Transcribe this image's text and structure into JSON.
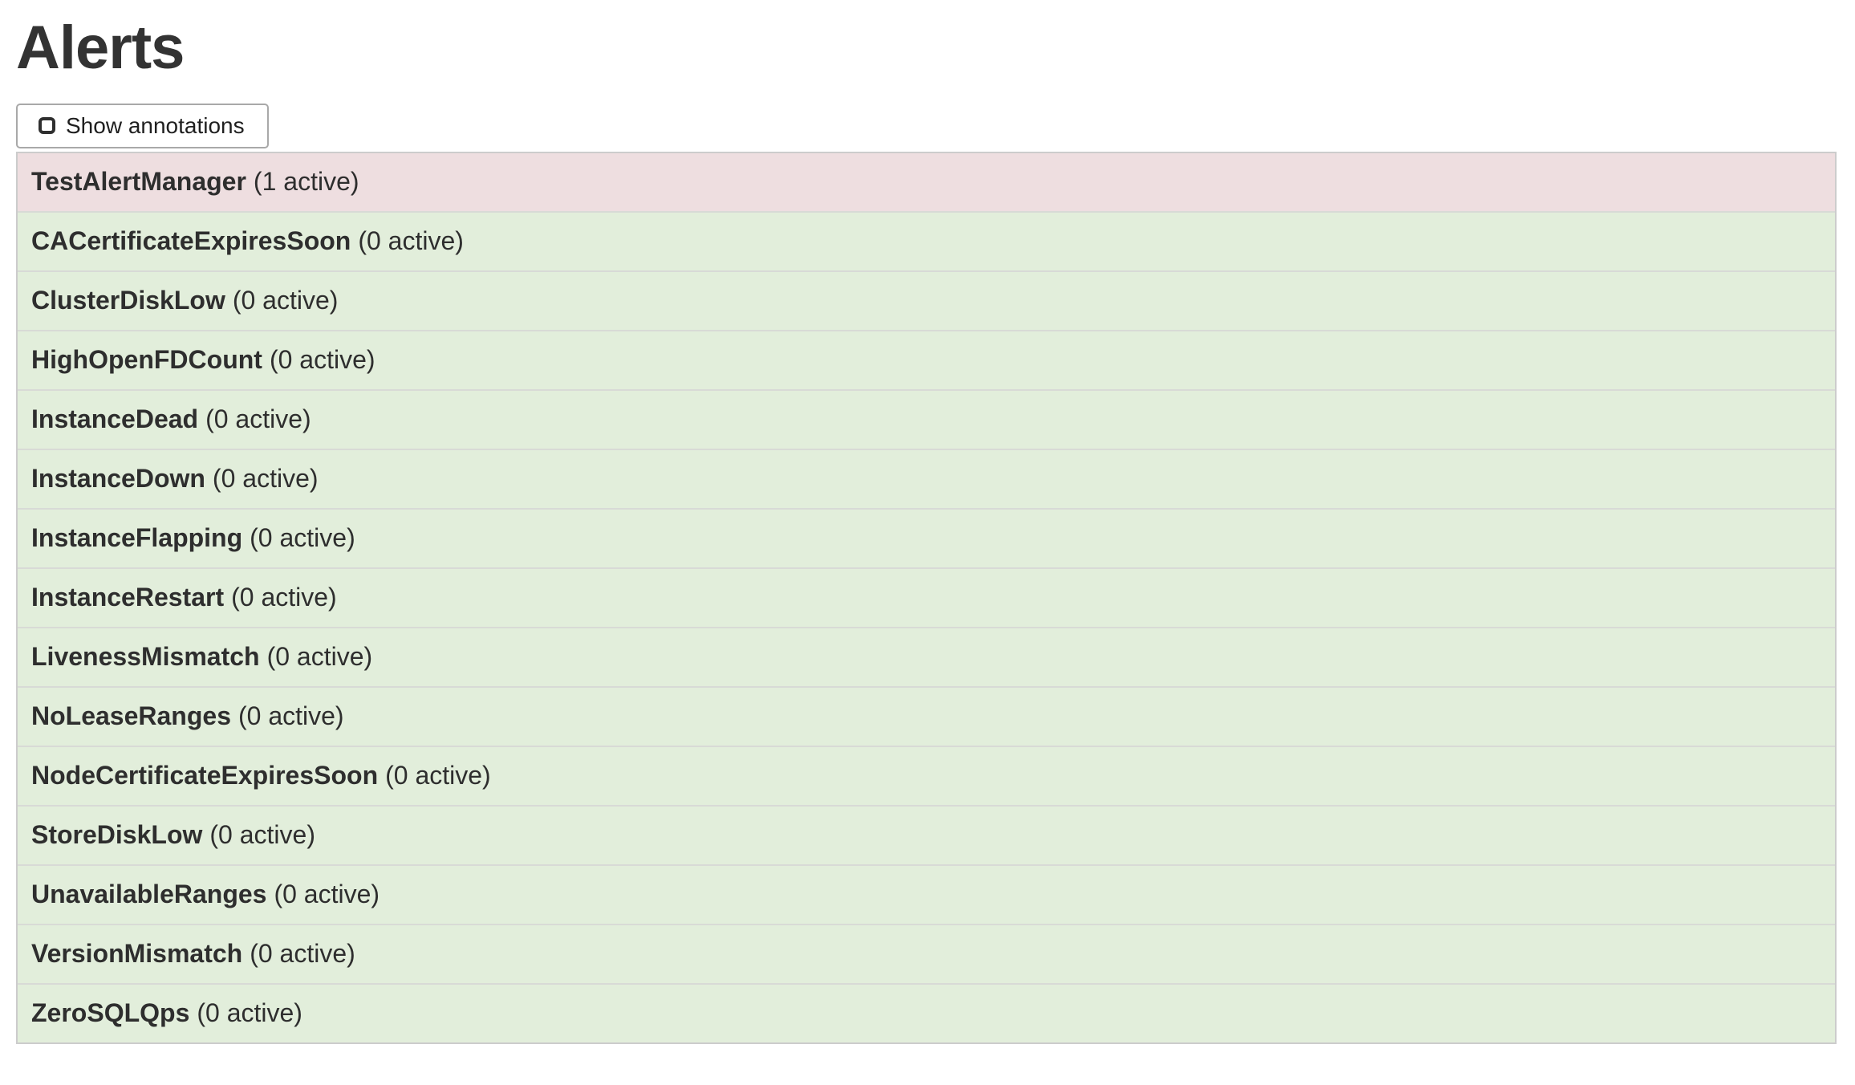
{
  "page": {
    "title": "Alerts"
  },
  "toolbar": {
    "show_annotations": {
      "label": "Show annotations",
      "checked": false
    }
  },
  "colors": {
    "firing_row_bg": "#eedee0",
    "inactive_row_bg": "#e2eedb",
    "row_border": "#d8dad6",
    "table_border": "#cccccc",
    "button_border": "#a9a9a9",
    "title_text": "#333333"
  },
  "alerts": [
    {
      "name": "TestAlertManager",
      "active_count": 1,
      "count_label": "(1 active)",
      "state": "firing"
    },
    {
      "name": "CACertificateExpiresSoon",
      "active_count": 0,
      "count_label": "(0 active)",
      "state": "inactive"
    },
    {
      "name": "ClusterDiskLow",
      "active_count": 0,
      "count_label": "(0 active)",
      "state": "inactive"
    },
    {
      "name": "HighOpenFDCount",
      "active_count": 0,
      "count_label": "(0 active)",
      "state": "inactive"
    },
    {
      "name": "InstanceDead",
      "active_count": 0,
      "count_label": "(0 active)",
      "state": "inactive"
    },
    {
      "name": "InstanceDown",
      "active_count": 0,
      "count_label": "(0 active)",
      "state": "inactive"
    },
    {
      "name": "InstanceFlapping",
      "active_count": 0,
      "count_label": "(0 active)",
      "state": "inactive"
    },
    {
      "name": "InstanceRestart",
      "active_count": 0,
      "count_label": "(0 active)",
      "state": "inactive"
    },
    {
      "name": "LivenessMismatch",
      "active_count": 0,
      "count_label": "(0 active)",
      "state": "inactive"
    },
    {
      "name": "NoLeaseRanges",
      "active_count": 0,
      "count_label": "(0 active)",
      "state": "inactive"
    },
    {
      "name": "NodeCertificateExpiresSoon",
      "active_count": 0,
      "count_label": "(0 active)",
      "state": "inactive"
    },
    {
      "name": "StoreDiskLow",
      "active_count": 0,
      "count_label": "(0 active)",
      "state": "inactive"
    },
    {
      "name": "UnavailableRanges",
      "active_count": 0,
      "count_label": "(0 active)",
      "state": "inactive"
    },
    {
      "name": "VersionMismatch",
      "active_count": 0,
      "count_label": "(0 active)",
      "state": "inactive"
    },
    {
      "name": "ZeroSQLQps",
      "active_count": 0,
      "count_label": "(0 active)",
      "state": "inactive"
    }
  ]
}
